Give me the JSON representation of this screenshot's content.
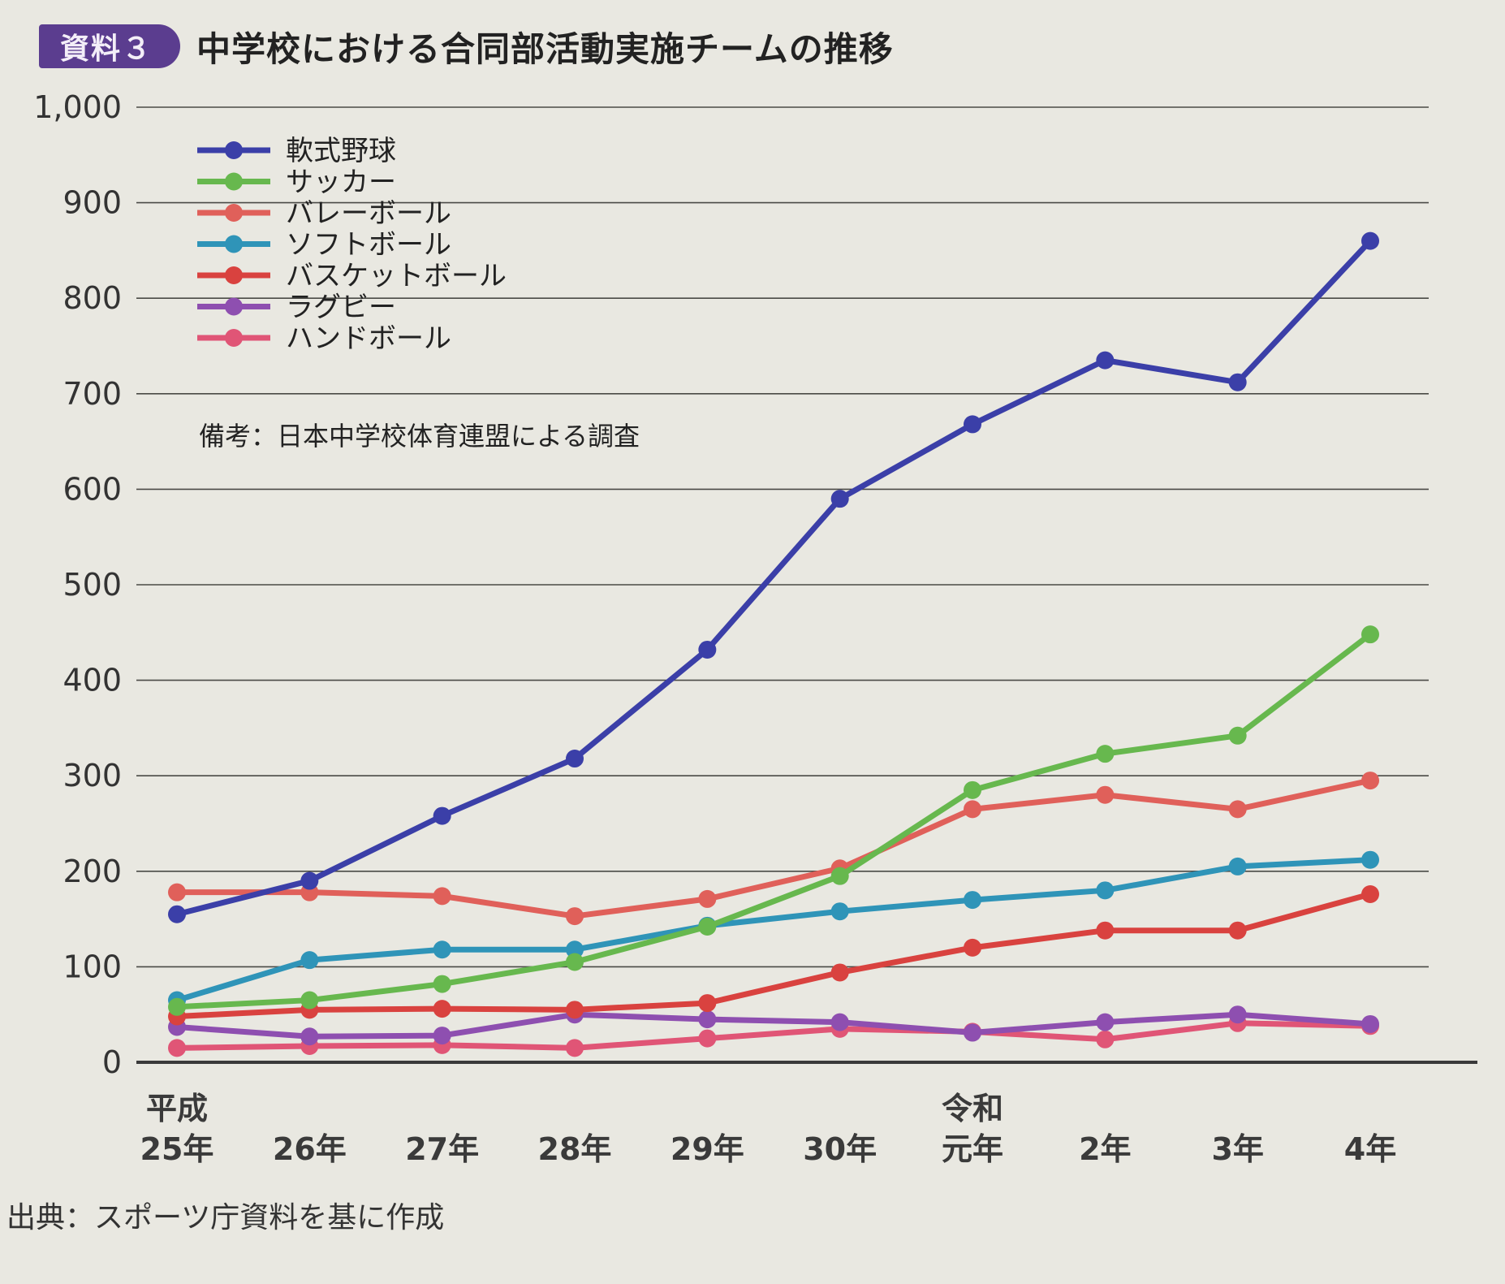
{
  "header": {
    "badge": "資料３",
    "title": "中学校における合同部活動実施チームの推移"
  },
  "note": "備考：日本中学校体育連盟による調査",
  "source": "出典：スポーツ庁資料を基に作成",
  "chart_data": {
    "type": "line",
    "title": "中学校における合同部活動実施チームの推移",
    "xlabel": "",
    "ylabel": "",
    "ylim": [
      0,
      1000
    ],
    "yticks": [
      0,
      100,
      200,
      300,
      400,
      500,
      600,
      700,
      800,
      900,
      1000
    ],
    "ytick_labels": [
      "0",
      "100",
      "200",
      "300",
      "400",
      "500",
      "600",
      "700",
      "800",
      "900",
      "1,000"
    ],
    "grid": true,
    "legend_position": "top-left",
    "categories": [
      [
        "平成",
        "25年"
      ],
      [
        "",
        "26年"
      ],
      [
        "",
        "27年"
      ],
      [
        "",
        "28年"
      ],
      [
        "",
        "29年"
      ],
      [
        "",
        "30年"
      ],
      [
        "令和",
        "元年"
      ],
      [
        "",
        "2年"
      ],
      [
        "",
        "3年"
      ],
      [
        "",
        "4年"
      ]
    ],
    "series": [
      {
        "name": "軟式野球",
        "color": "#3b3fa8",
        "values": [
          155,
          190,
          258,
          318,
          432,
          590,
          668,
          735,
          712,
          860
        ]
      },
      {
        "name": "サッカー",
        "color": "#67b84e",
        "values": [
          58,
          65,
          82,
          105,
          142,
          195,
          285,
          323,
          342,
          448
        ]
      },
      {
        "name": "バレーボール",
        "color": "#e0605a",
        "values": [
          178,
          178,
          174,
          153,
          171,
          203,
          265,
          280,
          265,
          295
        ]
      },
      {
        "name": "ソフトボール",
        "color": "#2f94b8",
        "values": [
          65,
          107,
          118,
          118,
          143,
          158,
          170,
          180,
          205,
          212
        ]
      },
      {
        "name": "バスケットボール",
        "color": "#d9423f",
        "values": [
          48,
          55,
          56,
          55,
          62,
          94,
          120,
          138,
          138,
          176
        ]
      },
      {
        "name": "ラグビー",
        "color": "#8e4fb0",
        "values": [
          37,
          27,
          28,
          50,
          45,
          42,
          31,
          42,
          50,
          40
        ]
      },
      {
        "name": "ハンドボール",
        "color": "#e05576",
        "values": [
          15,
          17,
          18,
          15,
          25,
          35,
          32,
          24,
          41,
          38
        ]
      }
    ]
  }
}
